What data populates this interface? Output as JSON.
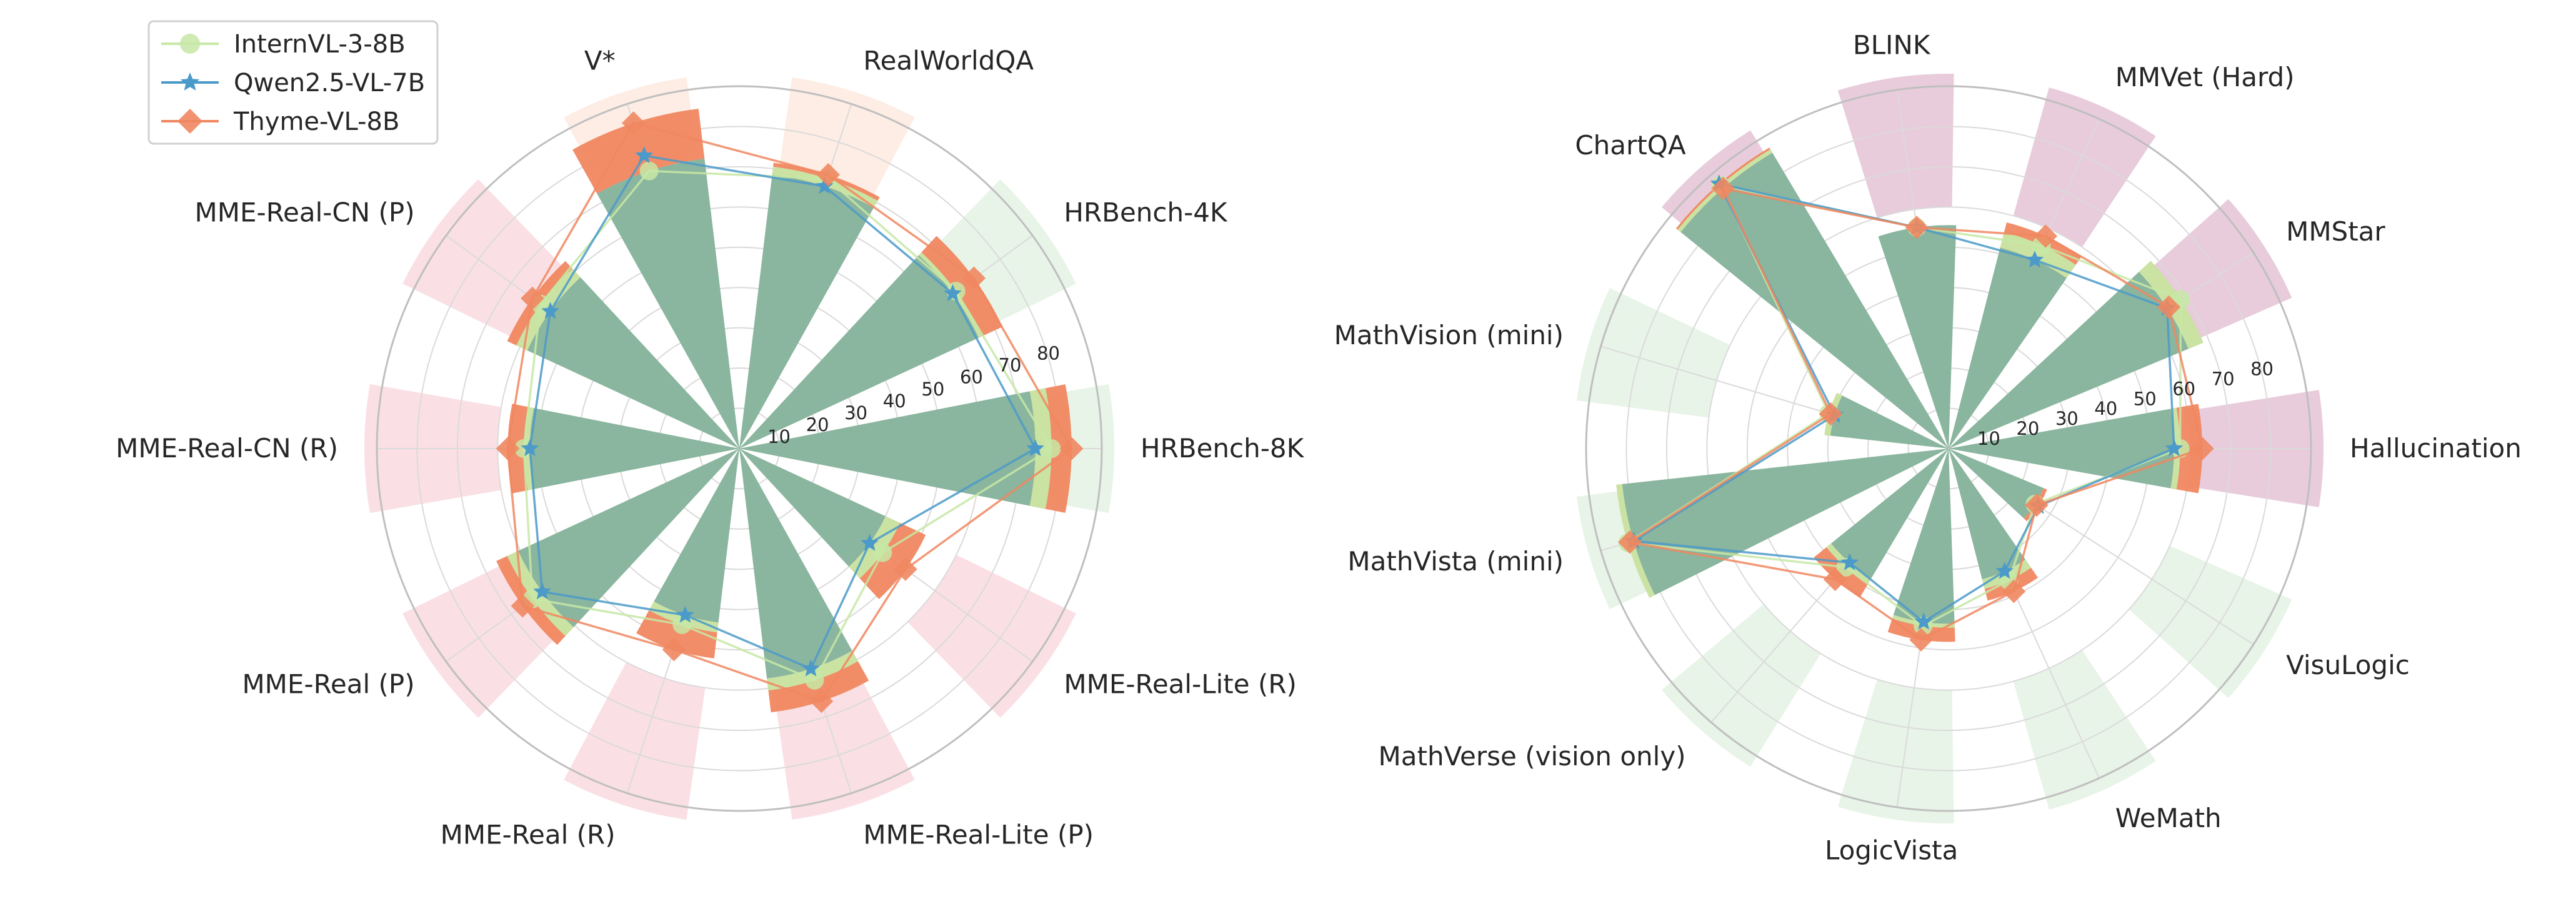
{
  "chart_data": [
    {
      "type": "polar-bar",
      "title": "",
      "rlim": [
        0,
        90
      ],
      "rticks": [
        10,
        20,
        30,
        40,
        50,
        60,
        70,
        80
      ],
      "grid": true,
      "legend": "top-left",
      "categories": [
        "HRBench-8K",
        "HRBench-4K",
        "RealWorldQA",
        "V*",
        "MME-Real-CN (P)",
        "MME-Real-CN (R)",
        "MME-Real (P)",
        "MME-Real (R)",
        "MME-Real-Lite (P)",
        "MME-Real-Lite (R)"
      ],
      "highlight": [
        "green",
        "green",
        "orange",
        "orange",
        "red",
        "red",
        "red",
        "red",
        "red",
        "red"
      ],
      "series": [
        {
          "name": "InternVL-3-8B",
          "values": [
            77.5,
            66.5,
            70.5,
            72.5,
            61.0,
            53.5,
            63.5,
            46.0,
            60.5,
            44.0
          ],
          "color": "#c7e8a6"
        },
        {
          "name": "Qwen2.5-VL-7B",
          "values": [
            73.5,
            65.5,
            68.5,
            76.5,
            58.0,
            52.0,
            60.5,
            43.5,
            57.5,
            40.0
          ],
          "color": "#4b9ac9"
        },
        {
          "name": "Thyme-VL-8B",
          "values": [
            82.5,
            72.0,
            71.5,
            85.0,
            63.5,
            57.5,
            66.5,
            52.5,
            66.0,
            51.0
          ],
          "color": "#f08760"
        }
      ]
    },
    {
      "type": "polar-bar",
      "title": "",
      "rlim": [
        0,
        90
      ],
      "rticks": [
        10,
        20,
        30,
        40,
        50,
        60,
        70,
        80
      ],
      "grid": true,
      "legend": "",
      "categories": [
        "Hallucination",
        "MMStar",
        "MMVet (Hard)",
        "BLINK",
        "ChartQA",
        "MathVision (mini)",
        "MathVista (mini)",
        "MathVerse (vision only)",
        "LogicVista",
        "WeMath",
        "VisuLogic"
      ],
      "highlight": [
        "purple",
        "purple",
        "purple",
        "purple",
        "purple",
        "green",
        "green",
        "green",
        "green",
        "green",
        "green"
      ],
      "series": [
        {
          "name": "InternVL-3-8B",
          "values": [
            57.5,
            68.5,
            55.5,
            55.5,
            86.5,
            31.0,
            83.0,
            39.0,
            44.5,
            36.0,
            25.5
          ],
          "color": "#c7e8a6"
        },
        {
          "name": "Qwen2.5-VL-7B",
          "values": [
            56.0,
            64.5,
            51.5,
            55.5,
            87.0,
            29.5,
            81.5,
            37.5,
            43.5,
            33.5,
            26.5
          ],
          "color": "#4b9ac9"
        },
        {
          "name": "Thyme-VL-8B",
          "values": [
            63.0,
            65.0,
            58.0,
            55.5,
            85.5,
            30.5,
            82.5,
            43.0,
            48.0,
            39.0,
            26.0
          ],
          "color": "#f08760"
        }
      ]
    }
  ],
  "colors": {
    "bar_base": "#8ab59e",
    "green": "#e6f3e5",
    "orange": "#fdebe1",
    "red": "#f9dde2",
    "purple": "#e2bfd2",
    "grid": "#dadada",
    "axis": "#bfbfbf",
    "text": "#262626"
  }
}
